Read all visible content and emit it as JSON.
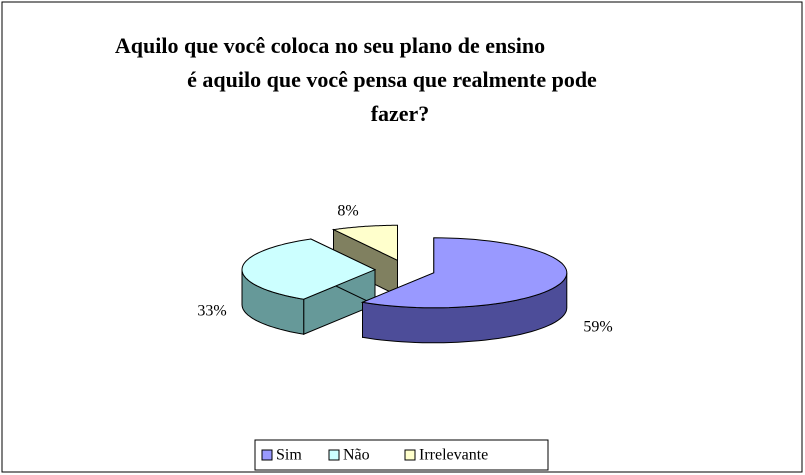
{
  "chart_data": {
    "type": "pie3d",
    "title": [
      "Aquilo que você coloca no seu plano de ensino",
      "é aquilo que você pensa que realmente pode",
      "fazer?"
    ],
    "categories": [
      "Sim",
      "Não",
      "Irrelevante"
    ],
    "values": [
      59,
      33,
      8
    ],
    "value_labels": [
      "59%",
      "33%",
      "8%"
    ],
    "colors": [
      "#9999ff",
      "#ccffff",
      "#ffffcc"
    ],
    "side_colors": [
      "#4d4d99",
      "#669999",
      "#808060"
    ],
    "legend": "bottom"
  }
}
